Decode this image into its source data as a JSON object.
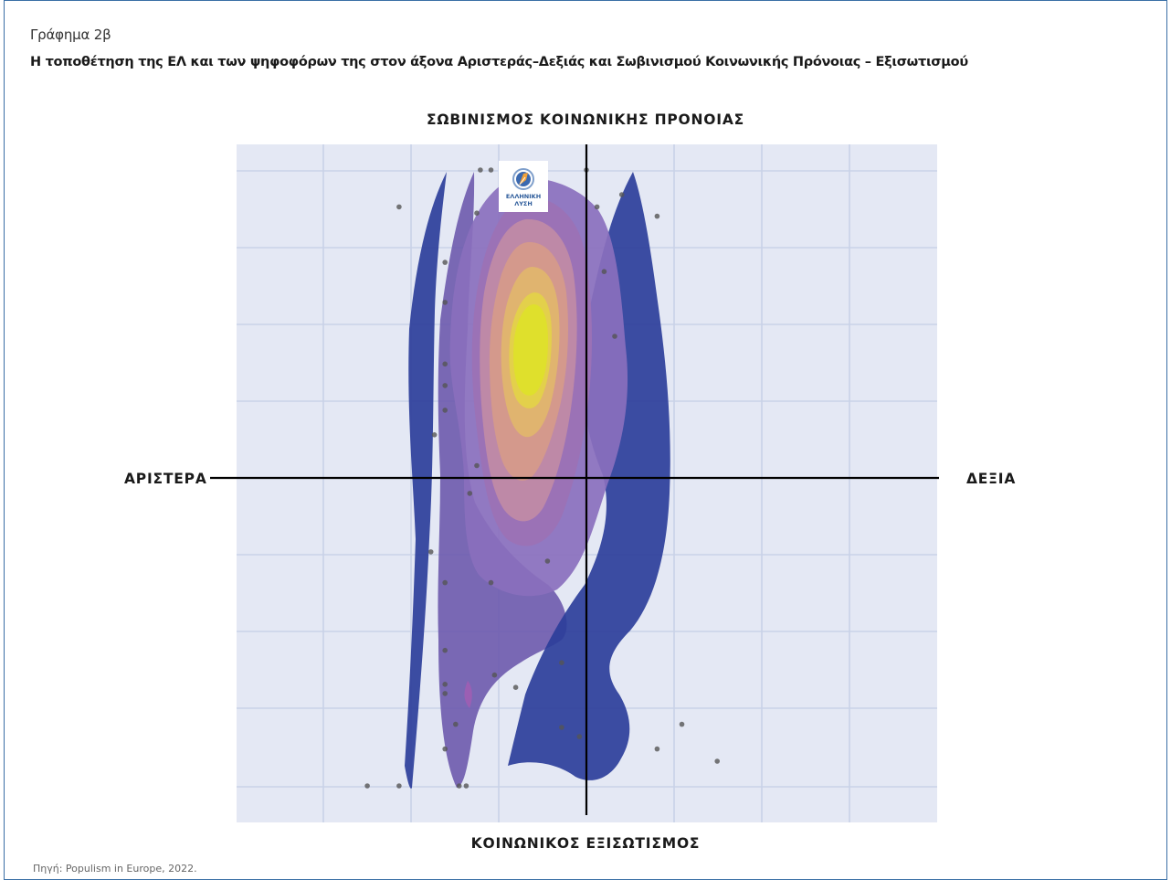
{
  "figure": {
    "label": "Γράφημα 2β",
    "title": "Η τοποθέτηση της ΕΛ και των ψηφοφόρων της στον άξονα Αριστεράς–Δεξιάς και Σωβινισμού Κοινωνικής Πρόνοιας – Εξισωτισμού",
    "source": "Πηγή: Populism in Europe, 2022."
  },
  "axes": {
    "top": "ΣΩΒΙΝΙΣΜΟΣ ΚΟΙΝΩΝΙΚΗΣ ΠΡΟΝΟΙΑΣ",
    "bottom": "ΚΟΙΝΩΝΙΚΟΣ ΕΞΙΣΩΤΙΣΜΟΣ",
    "left": "ΑΡΙΣΤΕΡΑ",
    "right": "ΔΕΞΙΑ"
  },
  "party_logo": {
    "line1": "ΕΛΛΗΝΙΚΗ",
    "line2": "ΛΥΣΗ",
    "icon": "compass-icon"
  },
  "chart_data": {
    "type": "scatter",
    "grid": true,
    "xlim": [
      -1,
      1
    ],
    "ylim": [
      -1,
      1
    ],
    "colors": {
      "density_low": "#2c3e9a",
      "density_mid": "#a56bb0",
      "density_high": "#e0e030",
      "points": "#555555",
      "background": "#e4e8f4",
      "grid": "#c9d2e8"
    },
    "density_peak": {
      "x": -0.15,
      "y": 0.46
    },
    "party_position": {
      "x": -0.18,
      "y": 0.97
    },
    "points": [
      {
        "x": -0.3,
        "y": 1.0
      },
      {
        "x": -0.27,
        "y": 1.0
      },
      {
        "x": 0.0,
        "y": 1.0
      },
      {
        "x": -0.53,
        "y": 0.88
      },
      {
        "x": -0.31,
        "y": 0.86
      },
      {
        "x": 0.1,
        "y": 0.92
      },
      {
        "x": 0.2,
        "y": 0.85
      },
      {
        "x": 0.03,
        "y": 0.88
      },
      {
        "x": -0.4,
        "y": 0.7
      },
      {
        "x": 0.05,
        "y": 0.67
      },
      {
        "x": -0.4,
        "y": 0.57
      },
      {
        "x": 0.08,
        "y": 0.46
      },
      {
        "x": -0.4,
        "y": 0.37
      },
      {
        "x": -0.4,
        "y": 0.3
      },
      {
        "x": -0.4,
        "y": 0.22
      },
      {
        "x": -0.43,
        "y": 0.14
      },
      {
        "x": -0.31,
        "y": 0.04
      },
      {
        "x": -0.33,
        "y": -0.05
      },
      {
        "x": -0.44,
        "y": -0.24
      },
      {
        "x": -0.4,
        "y": -0.34
      },
      {
        "x": -0.27,
        "y": -0.34
      },
      {
        "x": -0.11,
        "y": -0.27
      },
      {
        "x": -0.4,
        "y": -0.56
      },
      {
        "x": -0.4,
        "y": -0.67
      },
      {
        "x": -0.4,
        "y": -0.7
      },
      {
        "x": -0.26,
        "y": -0.64
      },
      {
        "x": -0.2,
        "y": -0.68
      },
      {
        "x": -0.07,
        "y": -0.6
      },
      {
        "x": -0.37,
        "y": -0.8
      },
      {
        "x": -0.07,
        "y": -0.81
      },
      {
        "x": 0.27,
        "y": -0.8
      },
      {
        "x": -0.4,
        "y": -0.88
      },
      {
        "x": -0.02,
        "y": -0.84
      },
      {
        "x": 0.2,
        "y": -0.88
      },
      {
        "x": 0.37,
        "y": -0.92
      },
      {
        "x": -0.62,
        "y": -1.0
      },
      {
        "x": -0.53,
        "y": -1.0
      },
      {
        "x": -0.36,
        "y": -1.0
      },
      {
        "x": -0.34,
        "y": -1.0
      }
    ]
  }
}
